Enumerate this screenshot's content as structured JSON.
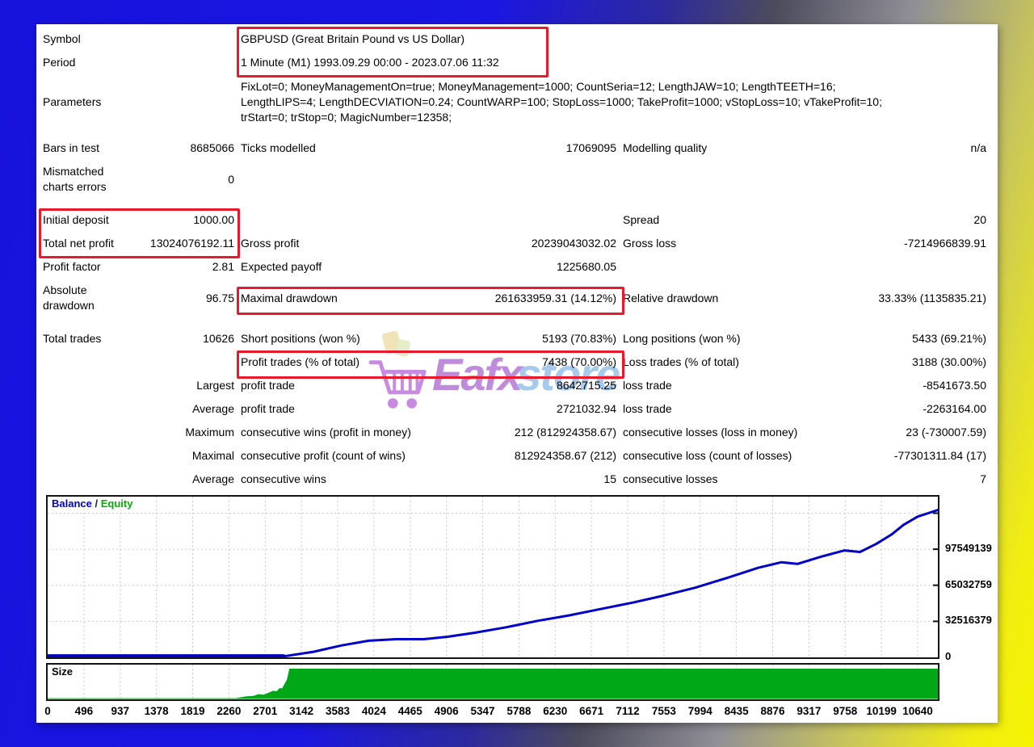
{
  "colors": {
    "accent_red": "#e8192c",
    "balance_line": "#0000c8",
    "equity_line": "#00b000",
    "size_fill": "#00a818",
    "background_blue": "#1b14e0",
    "background_yellow": "#f4f106",
    "watermark_purple": "#9b30c9",
    "watermark_blue": "#5f9fd8"
  },
  "report": {
    "rows": [
      {
        "c1l": "Symbol",
        "c2l": "GBPUSD (Great Britain Pound vs US Dollar)",
        "cls": ""
      },
      {
        "c1l": "Period",
        "c2l": "1 Minute (M1) 1993.09.29 00:00 - 2023.07.06 11:32",
        "cls": ""
      },
      {
        "c1l": "Parameters",
        "c2l": "FixLot=0; MoneyManagementOn=true; MoneyManagement=1000; CountSeria=12; LengthJAW=10; LengthTEETH=16;\nLengthLIPS=4; LengthDECVIATION=0.24; CountWARP=100; StopLoss=1000; TakeProfit=1000; vStopLoss=10; vTakeProfit=10;\ntrStart=0; trStop=0; MagicNumber=12358;",
        "cls": "params h3 mt6"
      },
      {
        "c1l": "Bars in test",
        "c1v": "8685066",
        "c2l": "Ticks modelled",
        "c2v": "17069095",
        "c3l": "Modelling quality",
        "c3v": "n/a",
        "cls": "mt14"
      },
      {
        "c1l": "Mismatched\ncharts errors",
        "c1v": "0",
        "cls": "h2"
      },
      {
        "c1l": "Initial deposit",
        "c1v": "1000.00",
        "c3l": "Spread",
        "c3v": "20",
        "cls": "mt12"
      },
      {
        "c1l": "Total net profit",
        "c1v": "13024076192.11",
        "c2l": "Gross profit",
        "c2v": "20239043032.02",
        "c3l": "Gross loss",
        "c3v": "-7214966839.91",
        "cls": ""
      },
      {
        "c1l": "Profit factor",
        "c1v": "2.81",
        "c2l": "Expected payoff",
        "c2v": "1225680.05",
        "cls": ""
      },
      {
        "c1l": "Absolute\ndrawdown",
        "c1v": "96.75",
        "c2l": "Maximal drawdown",
        "c2v": "261633959.31 (14.12%)",
        "c3l": "Relative drawdown",
        "c3v": "33.33% (1135835.21)",
        "cls": "h2"
      },
      {
        "c1l": "Total trades",
        "c1v": "10626",
        "c2l": "Short positions (won %)",
        "c2v": "5193 (70.83%)",
        "c3l": "Long positions (won %)",
        "c3v": "5433 (69.21%)",
        "cls": "mt12"
      },
      {
        "c2l": "Profit trades (% of total)",
        "c2v": "7438 (70.00%)",
        "c3l": "Loss trades (% of total)",
        "c3v": "3188 (30.00%)",
        "cls": ""
      },
      {
        "c1v": "Largest",
        "c2l": "profit trade",
        "c2v": "8642715.25",
        "c3l": "loss trade",
        "c3v": "-8541673.50",
        "cls": ""
      },
      {
        "c1v": "Average",
        "c2l": "profit trade",
        "c2v": "2721032.94",
        "c3l": "loss trade",
        "c3v": "-2263164.00",
        "cls": ""
      },
      {
        "c1v": "Maximum",
        "c2l": "consecutive wins (profit in money)",
        "c2v": "212 (812924358.67)",
        "c3l": "consecutive losses (loss in money)",
        "c3v": "23 (-730007.59)",
        "cls": ""
      },
      {
        "c1v": "Maximal",
        "c2l": "consecutive profit (count of wins)",
        "c2v": "812924358.67 (212)",
        "c3l": "consecutive loss (count of losses)",
        "c3v": "-77301311.84 (17)",
        "cls": ""
      },
      {
        "c1v": "Average",
        "c2l": "consecutive wins",
        "c2v": "15",
        "c3l": "consecutive losses",
        "c3v": "7",
        "cls": ""
      }
    ]
  },
  "chart_data": [
    {
      "type": "line",
      "title": "Balance / Equity",
      "legend": [
        "Balance",
        "Equity"
      ],
      "legend_separator": " / ",
      "legend_colors": [
        "#0000c8",
        "#00b000"
      ],
      "x_ticks": [
        0,
        496,
        937,
        1378,
        1819,
        2260,
        2701,
        3142,
        3583,
        4024,
        4465,
        4906,
        5347,
        5788,
        6230,
        6671,
        7112,
        7553,
        7994,
        8435,
        8876,
        9317,
        9758,
        10199,
        10640
      ],
      "y_ticks": [
        0,
        32516379,
        65032759,
        97549139
      ],
      "y_grid": [
        32516379,
        65032759,
        97549139,
        130065516
      ],
      "xlim": [
        0,
        10945
      ],
      "ylim": [
        0,
        145000000
      ],
      "grid": true,
      "legend_position": "top-left",
      "series": [
        {
          "name": "Balance",
          "color": "#0000c8",
          "points": [
            [
              0,
              1000000
            ],
            [
              2900,
              1000000
            ],
            [
              3250,
              5000000
            ],
            [
              3590,
              10700000
            ],
            [
              3925,
              15000000
            ],
            [
              4260,
              16400000
            ],
            [
              4600,
              16400000
            ],
            [
              4890,
              18600000
            ],
            [
              5225,
              22200000
            ],
            [
              5610,
              27200000
            ],
            [
              5990,
              32900000
            ],
            [
              6380,
              37900000
            ],
            [
              6760,
              43600000
            ],
            [
              7150,
              49300000
            ],
            [
              7530,
              55700000
            ],
            [
              7920,
              62900000
            ],
            [
              8300,
              71500000
            ],
            [
              8690,
              80800000
            ],
            [
              8975,
              85800000
            ],
            [
              9170,
              84300000
            ],
            [
              9455,
              90800000
            ],
            [
              9745,
              96500000
            ],
            [
              9935,
              95100000
            ],
            [
              10130,
              102200000
            ],
            [
              10320,
              110800000
            ],
            [
              10465,
              119400000
            ],
            [
              10640,
              127000000
            ],
            [
              10940,
              133000000
            ]
          ]
        },
        {
          "name": "Equity",
          "color": "#00b000",
          "points": []
        }
      ]
    },
    {
      "type": "area",
      "title": "Size",
      "color": "#00a818",
      "xlim": [
        0,
        10945
      ],
      "ylim": [
        0,
        1
      ],
      "points": [
        [
          0,
          0
        ],
        [
          2300,
          0
        ],
        [
          2420,
          0.05
        ],
        [
          2520,
          0.07
        ],
        [
          2580,
          0.12
        ],
        [
          2640,
          0.1
        ],
        [
          2700,
          0.16
        ],
        [
          2760,
          0.22
        ],
        [
          2800,
          0.2
        ],
        [
          2840,
          0.3
        ],
        [
          2870,
          0.28
        ],
        [
          2900,
          0.42
        ],
        [
          2930,
          0.55
        ],
        [
          2960,
          0.87
        ],
        [
          10945,
          0.87
        ]
      ]
    }
  ],
  "watermark": {
    "brand_primary": "Eafx",
    "brand_secondary": "store"
  }
}
